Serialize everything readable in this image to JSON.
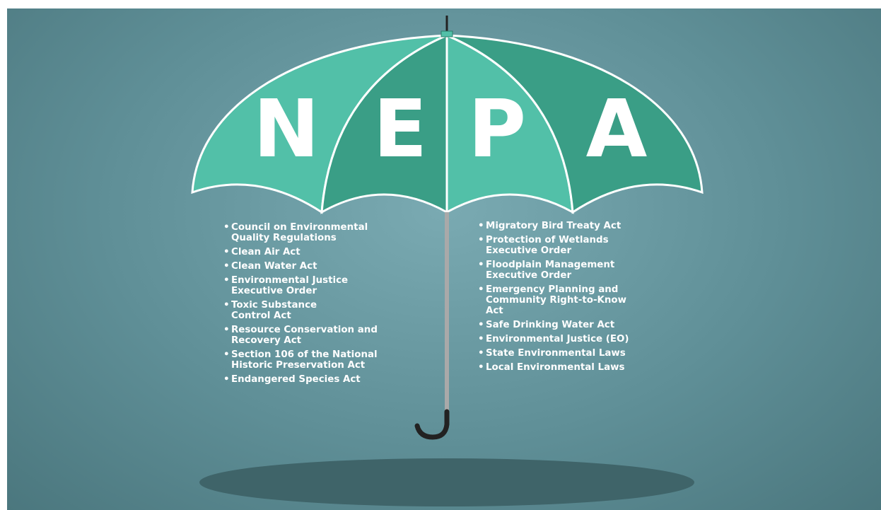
{
  "canopy": {
    "letters": [
      "N",
      "E",
      "P",
      "A"
    ]
  },
  "left_list": [
    "Council on Environmental\nQuality Regulations",
    "Clean Air Act",
    "Clean Water Act",
    "Environmental Justice\nExecutive Order",
    "Toxic Substance\nControl Act",
    "Resource Conservation and\nRecovery Act",
    "Section 106 of the National\nHistoric Preservation Act",
    "Endangered Species Act"
  ],
  "right_list": [
    "Migratory Bird Treaty Act",
    "Protection of Wetlands\nExecutive Order",
    "Floodplain Management\nExecutive Order",
    "Emergency Planning and\nCommunity Right-to-Know\nAct",
    "Safe Drinking Water Act",
    "Environmental Justice (EO)",
    "State Environmental Laws",
    "Local Environmental Laws"
  ]
}
